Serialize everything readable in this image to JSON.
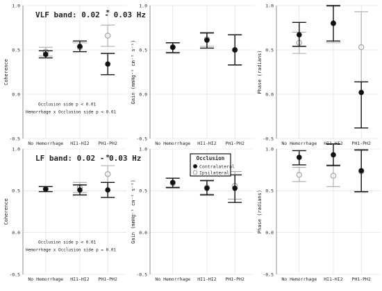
{
  "colors": {
    "contralateral": "#111111",
    "ipsilateral": "#a8a8a8",
    "grid": "#d9d9d9",
    "axis": "#444444"
  },
  "legend": {
    "title": "Occlusion",
    "items": [
      "Contralateral",
      "Ipsilateral"
    ]
  },
  "chart_data": [
    {
      "type": "scatter",
      "id": "vlf-coh",
      "row": 0,
      "col": 0,
      "title": "VLF band: 0.02 - 0.03 Hz",
      "ylabel": "Coherence",
      "categories": [
        "No Hemorrhage",
        "HI1-HI2",
        "PH1-PH2"
      ],
      "ylim": [
        -0.5,
        1.0
      ],
      "yticks": [
        "-0.5",
        "0.0",
        "0.5",
        "1.0"
      ],
      "series": [
        {
          "name": "Contralateral",
          "values": [
            0.45,
            0.54,
            0.34
          ],
          "lower": [
            0.41,
            0.48,
            0.22
          ],
          "upper": [
            0.49,
            0.6,
            0.46
          ]
        },
        {
          "name": "Ipsilateral",
          "values": [
            0.48,
            0.53,
            0.66
          ],
          "lower": [
            0.43,
            0.48,
            0.54
          ],
          "upper": [
            0.53,
            0.58,
            0.78
          ]
        }
      ],
      "stars": [
        {
          "category": 2,
          "y": 0.92,
          "text": "*"
        }
      ],
      "notes": [
        "Occlusion side p < 0.01",
        "Hemorrhage x Occlusion side p < 0.01"
      ]
    },
    {
      "type": "scatter",
      "id": "vlf-gain",
      "row": 0,
      "col": 1,
      "ylabel": "Gain (mmHg⁻¹ cm⁻¹ s⁻¹)",
      "categories": [
        "No Hemorrhage",
        "HI1-HI2",
        "PH1-PH2"
      ],
      "ylim": [
        -0.5,
        1.0
      ],
      "yticks": [
        "-0.5",
        "0.0",
        "0.5",
        "1.0"
      ],
      "series": [
        {
          "name": "Contralateral",
          "values": [
            0.53,
            0.61,
            0.5
          ],
          "lower": [
            0.47,
            0.52,
            0.33
          ],
          "upper": [
            0.58,
            0.69,
            0.67
          ]
        },
        {
          "name": "Ipsilateral",
          "values": [
            0.53,
            0.62,
            0.5
          ],
          "lower": [
            0.46,
            0.54,
            0.33
          ],
          "upper": [
            0.58,
            0.7,
            0.67
          ]
        }
      ]
    },
    {
      "type": "scatter",
      "id": "vlf-phase",
      "row": 0,
      "col": 2,
      "ylabel": "Phase (radians)",
      "categories": [
        "No Hemorrhage",
        "HI1-HI2",
        "PH1-PH2"
      ],
      "ylim": [
        -0.5,
        1.0
      ],
      "yticks": [
        "-0.5",
        "0.0",
        "0.5",
        "1.0"
      ],
      "series": [
        {
          "name": "Contralateral",
          "values": [
            0.67,
            0.8,
            0.02
          ],
          "lower": [
            0.54,
            0.6,
            -0.38
          ],
          "upper": [
            0.81,
            1.0,
            0.14
          ]
        },
        {
          "name": "Ipsilateral",
          "values": [
            0.58,
            0.8,
            0.53
          ],
          "lower": [
            0.46,
            0.58,
            0.14
          ],
          "upper": [
            0.7,
            0.99,
            0.93
          ]
        }
      ]
    },
    {
      "type": "scatter",
      "id": "lf-coh",
      "row": 1,
      "col": 0,
      "title": "LF band: 0.02 - 0.03 Hz",
      "ylabel": "Coherence",
      "categories": [
        "No Hemorrhage",
        "HI1-HI2",
        "PH1-PH2"
      ],
      "ylim": [
        -0.5,
        1.0
      ],
      "yticks": [
        "-0.5",
        "0.0",
        "0.5",
        "1.0"
      ],
      "series": [
        {
          "name": "Contralateral",
          "values": [
            0.52,
            0.51,
            0.51
          ],
          "lower": [
            0.49,
            0.45,
            0.42
          ],
          "upper": [
            0.55,
            0.57,
            0.6
          ]
        },
        {
          "name": "Ipsilateral",
          "values": [
            0.52,
            0.54,
            0.7
          ],
          "lower": [
            0.49,
            0.48,
            0.6
          ],
          "upper": [
            0.55,
            0.6,
            0.8
          ]
        }
      ],
      "stars": [
        {
          "category": 2,
          "y": 0.9,
          "text": "*"
        }
      ],
      "notes": [
        "Occlusion side p < 0.01",
        "Hemorrhage x Occlusion side p = 0.01"
      ]
    },
    {
      "type": "scatter",
      "id": "lf-gain",
      "row": 1,
      "col": 1,
      "ylabel": "Gain (mmHg⁻¹ cm⁻¹ s⁻¹)",
      "categories": [
        "No Hemorrhage",
        "HI1-HI2",
        "PH1-PH2"
      ],
      "ylim": [
        -0.5,
        1.0
      ],
      "yticks": [
        "-0.5",
        "0.0",
        "0.5",
        "1.0"
      ],
      "series": [
        {
          "name": "Contralateral",
          "values": [
            0.6,
            0.53,
            0.53
          ],
          "lower": [
            0.54,
            0.45,
            0.36
          ],
          "upper": [
            0.65,
            0.62,
            0.69
          ]
        },
        {
          "name": "Ipsilateral",
          "values": [
            0.59,
            0.54,
            0.56
          ],
          "lower": [
            0.53,
            0.46,
            0.4
          ],
          "upper": [
            0.65,
            0.63,
            0.73
          ]
        }
      ]
    },
    {
      "type": "scatter",
      "id": "lf-phase",
      "row": 1,
      "col": 2,
      "ylabel": "Phase (radians)",
      "categories": [
        "No Hemorrhage",
        "HI1-HI2",
        "PH1-PH2"
      ],
      "ylim": [
        -0.5,
        1.0
      ],
      "yticks": [
        "-0.5",
        "0.0",
        "0.5",
        "1.0"
      ],
      "series": [
        {
          "name": "Contralateral",
          "values": [
            0.9,
            0.93,
            0.74
          ],
          "lower": [
            0.81,
            0.8,
            0.49
          ],
          "upper": [
            0.98,
            1.06,
            0.99
          ]
        },
        {
          "name": "Ipsilateral",
          "values": [
            0.69,
            0.68,
            0.73
          ],
          "lower": [
            0.61,
            0.55,
            0.48
          ],
          "upper": [
            0.78,
            0.81,
            0.98
          ]
        }
      ]
    }
  ]
}
